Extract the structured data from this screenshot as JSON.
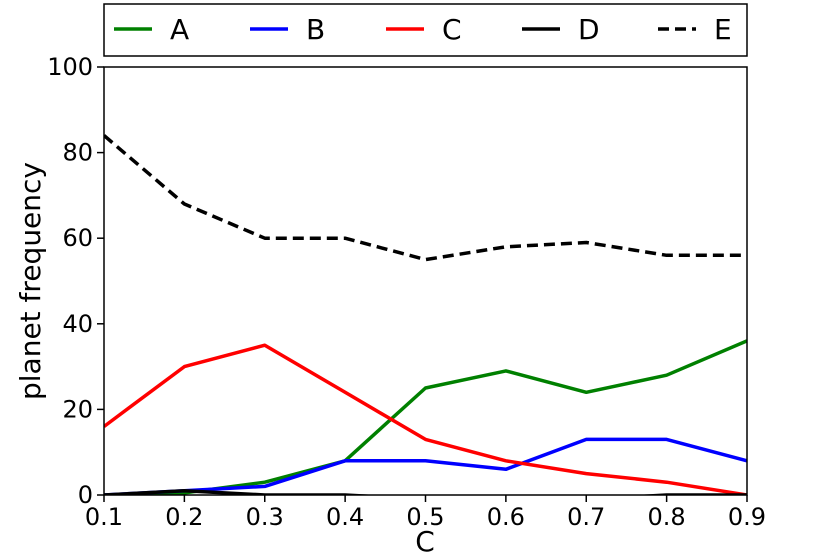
{
  "chart_data": {
    "type": "line",
    "title": "",
    "xlabel": "C",
    "ylabel": "planet frequency",
    "x": [
      0.1,
      0.2,
      0.3,
      0.4,
      0.5,
      0.6,
      0.7,
      0.8,
      0.9
    ],
    "x_tick_labels": [
      "0.1",
      "0.2",
      "0.3",
      "0.4",
      "0.5",
      "0.6",
      "0.7",
      "0.8",
      "0.9"
    ],
    "y_tick_labels": [
      "0",
      "20",
      "40",
      "60",
      "80",
      "100"
    ],
    "xlim": [
      0.1,
      0.9
    ],
    "ylim": [
      0,
      100
    ],
    "grid": false,
    "legend_position": "top, outside plot, single row",
    "series": [
      {
        "name": "A",
        "color": "#008000",
        "dash": "solid",
        "values": [
          0,
          0.5,
          3,
          8,
          25,
          29,
          24,
          28,
          36
        ]
      },
      {
        "name": "B",
        "color": "#0000ff",
        "dash": "solid",
        "values": [
          0,
          1,
          2,
          8,
          8,
          6,
          13,
          13,
          8
        ]
      },
      {
        "name": "C",
        "color": "#ff0000",
        "dash": "solid",
        "values": [
          16,
          30,
          35,
          24,
          13,
          8,
          5,
          3,
          0
        ]
      },
      {
        "name": "D",
        "color": "#000000",
        "dash": "solid",
        "values": [
          0,
          1,
          0,
          0,
          -1,
          -1,
          -1,
          0,
          0
        ]
      },
      {
        "name": "E",
        "color": "#000000",
        "dash": "dashed",
        "values": [
          84,
          68,
          60,
          60,
          55,
          58,
          59,
          56,
          56
        ]
      }
    ]
  }
}
